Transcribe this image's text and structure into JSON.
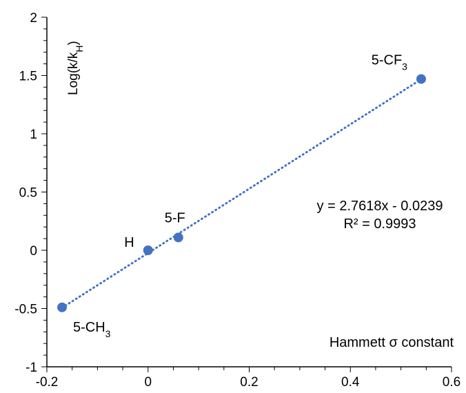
{
  "chart_data": {
    "type": "scatter",
    "ylabel": "Log(k/k",
    "ylabel_sub": "H",
    "ylabel_end": ")",
    "xlabel": "Hammett σ constant",
    "xlim": [
      -0.2,
      0.6
    ],
    "ylim": [
      -1,
      2
    ],
    "x_ticks": [
      "-0.2",
      "0",
      "0.2",
      "0.4",
      "0.6"
    ],
    "y_ticks": [
      "-1",
      "-0.5",
      "0",
      "0.5",
      "1",
      "1.5",
      "2"
    ],
    "x_tick_values": [
      -0.2,
      0,
      0.2,
      0.4,
      0.6
    ],
    "y_tick_values": [
      -1,
      -0.5,
      0,
      0.5,
      1,
      1.5,
      2
    ],
    "grid": false,
    "points": [
      {
        "label": "5-CH",
        "sub": "3",
        "x": -0.17,
        "y": -0.49
      },
      {
        "label": "H",
        "sub": "",
        "x": 0.0,
        "y": 0.0
      },
      {
        "label": "5-F",
        "sub": "",
        "x": 0.06,
        "y": 0.11
      },
      {
        "label": "5-CF",
        "sub": "3",
        "x": 0.54,
        "y": 1.47
      }
    ],
    "trendline": {
      "slope": 2.7618,
      "intercept": -0.0239,
      "equation": "y = 2.7618x - 0.0239",
      "r_squared": "R² = 0.9993"
    },
    "marker_color": "#4472C4",
    "line_color": "#4472C4"
  }
}
